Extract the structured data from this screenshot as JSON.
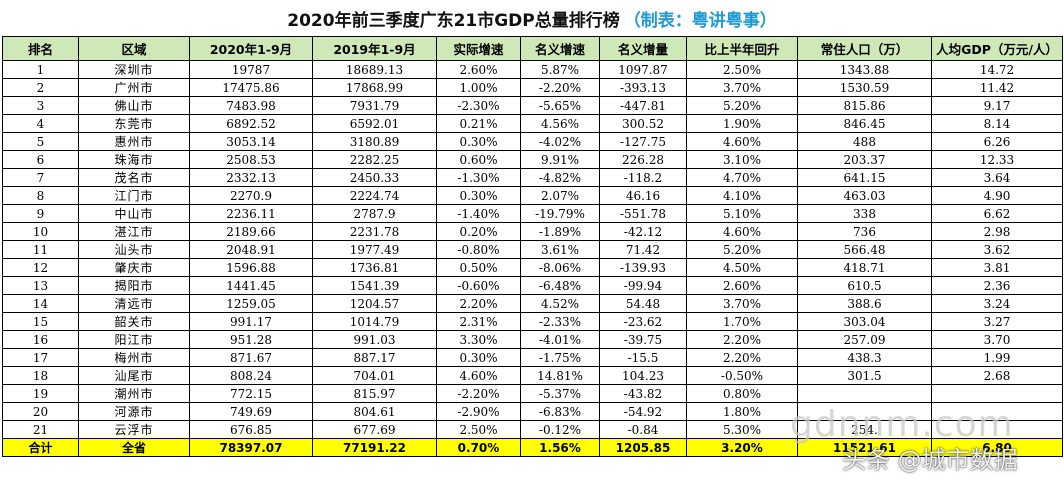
{
  "title": {
    "main": "2020年前三季度广东21市GDP总量排行榜",
    "suffix": "（制表：粤讲粤事）"
  },
  "table": {
    "headers": [
      "排名",
      "区域",
      "2020年1-9月",
      "2019年1-9月",
      "实际增速",
      "名义增速",
      "名义增量",
      "比上半年回升",
      "常住人口（万）",
      "人均GDP（万元/人）"
    ],
    "rows": [
      [
        "1",
        "深圳市",
        "19787",
        "18689.13",
        "2.60%",
        "5.87%",
        "1097.87",
        "2.50%",
        "1343.88",
        "14.72"
      ],
      [
        "2",
        "广州市",
        "17475.86",
        "17868.99",
        "1.00%",
        "-2.20%",
        "-393.13",
        "3.70%",
        "1530.59",
        "11.42"
      ],
      [
        "3",
        "佛山市",
        "7483.98",
        "7931.79",
        "-2.30%",
        "-5.65%",
        "-447.81",
        "5.20%",
        "815.86",
        "9.17"
      ],
      [
        "4",
        "东莞市",
        "6892.52",
        "6592.01",
        "0.21%",
        "4.56%",
        "300.52",
        "1.90%",
        "846.45",
        "8.14"
      ],
      [
        "5",
        "惠州市",
        "3053.14",
        "3180.89",
        "0.30%",
        "-4.02%",
        "-127.75",
        "4.60%",
        "488",
        "6.26"
      ],
      [
        "6",
        "珠海市",
        "2508.53",
        "2282.25",
        "0.60%",
        "9.91%",
        "226.28",
        "3.10%",
        "203.37",
        "12.33"
      ],
      [
        "7",
        "茂名市",
        "2332.13",
        "2450.33",
        "-1.30%",
        "-4.82%",
        "-118.2",
        "4.70%",
        "641.15",
        "3.64"
      ],
      [
        "8",
        "江门市",
        "2270.9",
        "2224.74",
        "0.30%",
        "2.07%",
        "46.16",
        "4.10%",
        "463.03",
        "4.90"
      ],
      [
        "9",
        "中山市",
        "2236.11",
        "2787.9",
        "-1.40%",
        "-19.79%",
        "-551.78",
        "5.10%",
        "338",
        "6.62"
      ],
      [
        "10",
        "湛江市",
        "2189.66",
        "2231.78",
        "0.20%",
        "-1.89%",
        "-42.12",
        "4.60%",
        "736",
        "2.98"
      ],
      [
        "11",
        "汕头市",
        "2048.91",
        "1977.49",
        "-0.80%",
        "3.61%",
        "71.42",
        "5.20%",
        "566.48",
        "3.62"
      ],
      [
        "12",
        "肇庆市",
        "1596.88",
        "1736.81",
        "0.50%",
        "-8.06%",
        "-139.93",
        "4.50%",
        "418.71",
        "3.81"
      ],
      [
        "13",
        "揭阳市",
        "1441.45",
        "1541.39",
        "-0.60%",
        "-6.48%",
        "-99.94",
        "2.60%",
        "610.5",
        "2.36"
      ],
      [
        "14",
        "清远市",
        "1259.05",
        "1204.57",
        "2.20%",
        "4.52%",
        "54.48",
        "3.70%",
        "388.6",
        "3.24"
      ],
      [
        "15",
        "韶关市",
        "991.17",
        "1014.79",
        "2.31%",
        "-2.33%",
        "-23.62",
        "1.70%",
        "303.04",
        "3.27"
      ],
      [
        "16",
        "阳江市",
        "951.28",
        "991.03",
        "3.30%",
        "-4.01%",
        "-39.75",
        "2.20%",
        "257.09",
        "3.70"
      ],
      [
        "17",
        "梅州市",
        "871.67",
        "887.17",
        "0.30%",
        "-1.75%",
        "-15.5",
        "2.20%",
        "438.3",
        "1.99"
      ],
      [
        "18",
        "汕尾市",
        "808.24",
        "704.01",
        "4.60%",
        "14.81%",
        "104.23",
        "-0.50%",
        "301.5",
        "2.68"
      ],
      [
        "19",
        "潮州市",
        "772.15",
        "815.97",
        "-2.20%",
        "-5.37%",
        "-43.82",
        "0.80%",
        "",
        ""
      ],
      [
        "20",
        "河源市",
        "749.69",
        "804.61",
        "-2.90%",
        "-6.83%",
        "-54.92",
        "1.80%",
        "",
        ""
      ],
      [
        "21",
        "云浮市",
        "676.85",
        "677.69",
        "2.50%",
        "-0.12%",
        "-0.84",
        "5.30%",
        "254.",
        ""
      ]
    ],
    "total": [
      "合计",
      "全省",
      "78397.07",
      "77191.22",
      "0.70%",
      "1.56%",
      "1205.85",
      "3.20%",
      "11521.61",
      "6.80"
    ]
  },
  "watermarks": {
    "site": "gdnnm.com",
    "account": "头条 @城市数据"
  }
}
